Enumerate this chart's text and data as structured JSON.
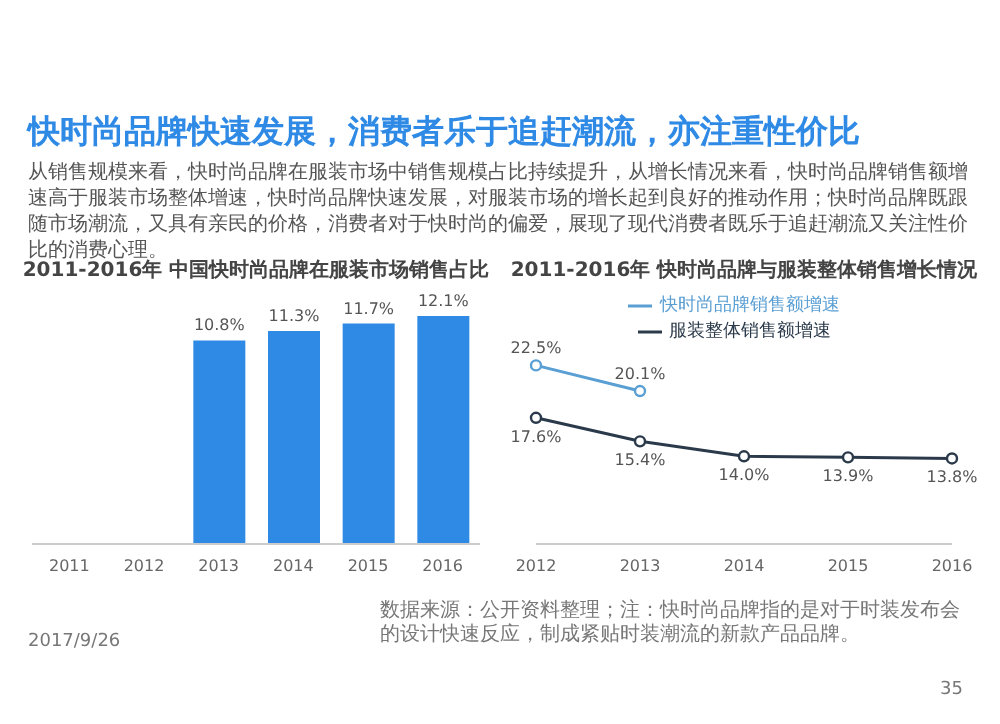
{
  "chart_data": [
    {
      "type": "bar",
      "title": "2011-2016年 中国快时尚品牌在服装市场销售占比",
      "categories": [
        "2011",
        "2012",
        "2013",
        "2014",
        "2015",
        "2016"
      ],
      "values": [
        null,
        null,
        10.8,
        11.3,
        11.7,
        12.1
      ],
      "value_labels": [
        null,
        null,
        "10.8%",
        "11.3%",
        "11.7%",
        "12.1%"
      ],
      "color": "#2f8ae5",
      "annotations": [
        "快时尚品牌快速发展，消费者乐于追赶潮流，亦注重性价比",
        "从销售规模来看，快时尚品牌在服装市场中销售规模占比持续提升，从增长情况来看，快时尚品牌销售额增速高于服装市场整体增速，快时尚品牌快速发展，对服装市场的增长起到良好的推动作用；快时尚品牌既跟随市场潮流，又具有亲民的价格，消费者对于快时尚的偏爱，展现了现代消费者既乐于追赶潮流又关注性价比的消费心理。",
        "2017/9/26"
      ]
    },
    {
      "type": "line",
      "title": "2011-2016年 快时尚品牌与服装整体销售增长情况",
      "categories": [
        "2012",
        "2013",
        "2014",
        "2015",
        "2016"
      ],
      "legend": "top",
      "marker": "circle",
      "series": [
        {
          "name": "快时尚品牌销售额增速",
          "color": "#5a9fd4",
          "values": [
            22.5,
            20.1,
            null,
            null,
            null
          ],
          "value_labels": [
            "22.5%",
            "20.1%",
            null,
            null,
            null
          ]
        },
        {
          "name": "服装整体销售额增速",
          "color": "#2b3a4a",
          "values": [
            17.6,
            15.4,
            14.0,
            13.9,
            13.8
          ],
          "value_labels": [
            "17.6%",
            "15.4%",
            "14.0%",
            "13.9%",
            "13.8%"
          ]
        }
      ],
      "annotations": [
        "数据来源：公开资料整理；注：快时尚品牌指的是对于时装发布会的设计快速反应，制成紧贴时装潮流的新款产品品牌。",
        "35"
      ]
    }
  ]
}
